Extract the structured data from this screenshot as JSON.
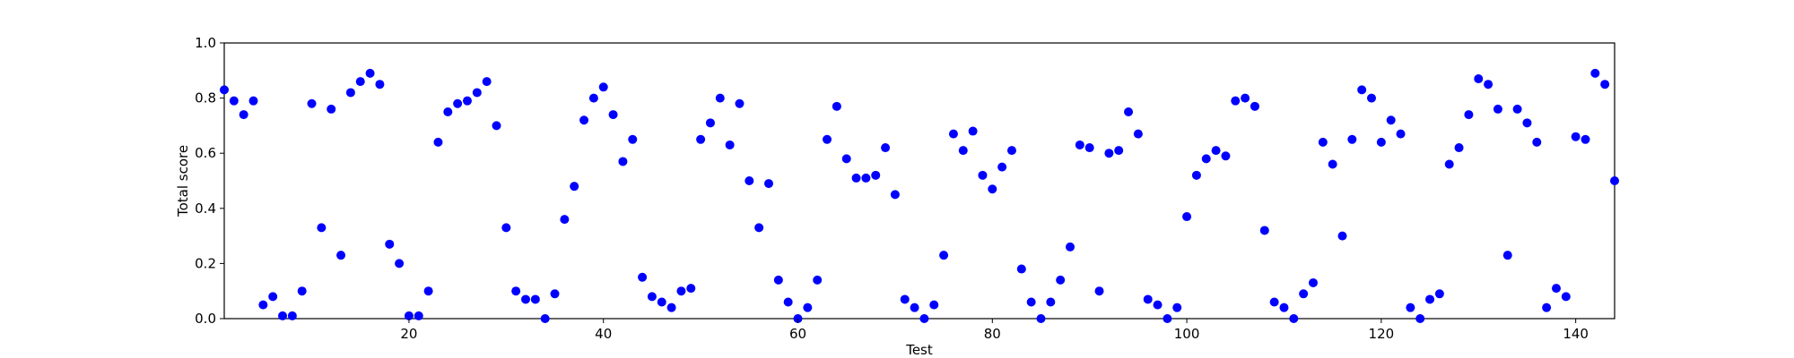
{
  "chart_data": {
    "type": "scatter",
    "title": "",
    "xlabel": "Test",
    "ylabel": "Total score",
    "xlim": [
      1,
      144
    ],
    "ylim": [
      0,
      1
    ],
    "xticks": [
      20,
      40,
      60,
      80,
      100,
      120,
      140
    ],
    "xtick_labels": [
      "20",
      "40",
      "60",
      "80",
      "100",
      "120",
      "140"
    ],
    "yticks": [
      0,
      0.2,
      0.4,
      0.6,
      0.8,
      1.0
    ],
    "ytick_labels": [
      "0.0",
      "0.2",
      "0.4",
      "0.6",
      "0.8",
      "1.0"
    ],
    "grid": false,
    "legend": "none",
    "marker_color": "#0000ff",
    "series": [
      {
        "x": [
          1,
          2,
          3,
          4,
          5,
          6,
          7,
          8,
          9,
          10,
          11,
          12,
          13,
          14,
          15,
          16,
          17,
          18,
          19,
          20,
          21,
          22,
          23,
          24,
          25,
          26,
          27,
          28,
          29,
          30,
          31,
          32,
          33,
          34,
          35,
          36,
          37,
          38,
          39,
          40,
          41,
          42,
          43,
          44,
          45,
          46,
          47,
          48,
          49,
          50,
          51,
          52,
          53,
          54,
          55,
          56,
          57,
          58,
          59,
          60,
          61,
          62,
          63,
          64,
          65,
          66,
          67,
          68,
          69,
          70,
          71,
          72,
          73,
          74,
          75,
          76,
          77,
          78,
          79,
          80,
          81,
          82,
          83,
          84,
          85,
          86,
          87,
          88,
          89,
          90,
          91,
          92,
          93,
          94,
          95,
          96,
          97,
          98,
          99,
          100,
          101,
          102,
          103,
          104,
          105,
          106,
          107,
          108,
          109,
          110,
          111,
          112,
          113,
          114,
          115,
          116,
          117,
          118,
          119,
          120,
          121,
          122,
          123,
          124,
          125,
          126,
          127,
          128,
          129,
          130,
          131,
          132,
          133,
          134,
          135,
          136,
          137,
          138,
          139,
          140,
          141,
          142,
          143,
          144
        ],
        "y": [
          0.83,
          0.79,
          0.74,
          0.79,
          0.05,
          0.08,
          0.01,
          0.01,
          0.1,
          0.78,
          0.33,
          0.76,
          0.23,
          0.82,
          0.86,
          0.89,
          0.85,
          0.27,
          0.2,
          0.01,
          0.01,
          0.1,
          0.64,
          0.75,
          0.78,
          0.79,
          0.82,
          0.86,
          0.7,
          0.33,
          0.1,
          0.07,
          0.07,
          0.0,
          0.09,
          0.36,
          0.48,
          0.72,
          0.8,
          0.84,
          0.74,
          0.57,
          0.65,
          0.15,
          0.08,
          0.06,
          0.04,
          0.1,
          0.11,
          0.65,
          0.71,
          0.8,
          0.63,
          0.78,
          0.5,
          0.33,
          0.49,
          0.14,
          0.06,
          0.0,
          0.04,
          0.14,
          0.65,
          0.77,
          0.58,
          0.51,
          0.51,
          0.52,
          0.62,
          0.45,
          0.07,
          0.04,
          0.0,
          0.05,
          0.23,
          0.67,
          0.61,
          0.68,
          0.52,
          0.47,
          0.55,
          0.61,
          0.18,
          0.06,
          0.0,
          0.06,
          0.14,
          0.26,
          0.63,
          0.62,
          0.1,
          0.6,
          0.61,
          0.75,
          0.67,
          0.07,
          0.05,
          0.0,
          0.04,
          0.37,
          0.52,
          0.58,
          0.61,
          0.59,
          0.79,
          0.8,
          0.77,
          0.32,
          0.06,
          0.04,
          0.0,
          0.09,
          0.13,
          0.64,
          0.56,
          0.3,
          0.65,
          0.83,
          0.8,
          0.64,
          0.72,
          0.67,
          0.04,
          0.0,
          0.07,
          0.09,
          0.56,
          0.62,
          0.74,
          0.87,
          0.85,
          0.76,
          0.23,
          0.76,
          0.71,
          0.64,
          0.04,
          0.11,
          0.08,
          0.66,
          0.65,
          0.89,
          0.85,
          0.5
        ]
      }
    ]
  }
}
